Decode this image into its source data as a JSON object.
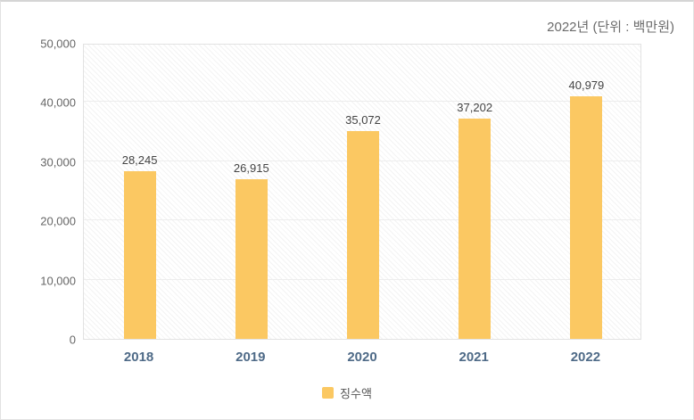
{
  "header": {
    "title": "2022년 (단위 : 백만원)"
  },
  "legend": {
    "label": "징수액"
  },
  "colors": {
    "bar": "#fbc862",
    "value_label": "#444444",
    "y_tick_label": "#666666",
    "x_tick_label": "#4e6a87",
    "grid_line": "#ededed",
    "plot_border": "#e2e2e2",
    "title_text": "#6b6b6b"
  },
  "chart_data": {
    "type": "bar",
    "title": "2022년 (단위 : 백만원)",
    "categories": [
      "2018",
      "2019",
      "2020",
      "2021",
      "2022"
    ],
    "series": [
      {
        "name": "징수액",
        "values": [
          28245,
          26915,
          35072,
          37202,
          40979
        ]
      }
    ],
    "value_labels": [
      "28,245",
      "26,915",
      "35,072",
      "37,202",
      "40,979"
    ],
    "xlabel": "",
    "ylabel": "",
    "ylim": [
      0,
      50000
    ],
    "y_ticks": [
      0,
      10000,
      20000,
      30000,
      40000,
      50000
    ],
    "y_tick_labels": [
      "0",
      "10,000",
      "20,000",
      "30,000",
      "40,000",
      "50,000"
    ],
    "grid": true,
    "legend_position": "bottom",
    "background_pattern": "diagonal-hatch"
  }
}
